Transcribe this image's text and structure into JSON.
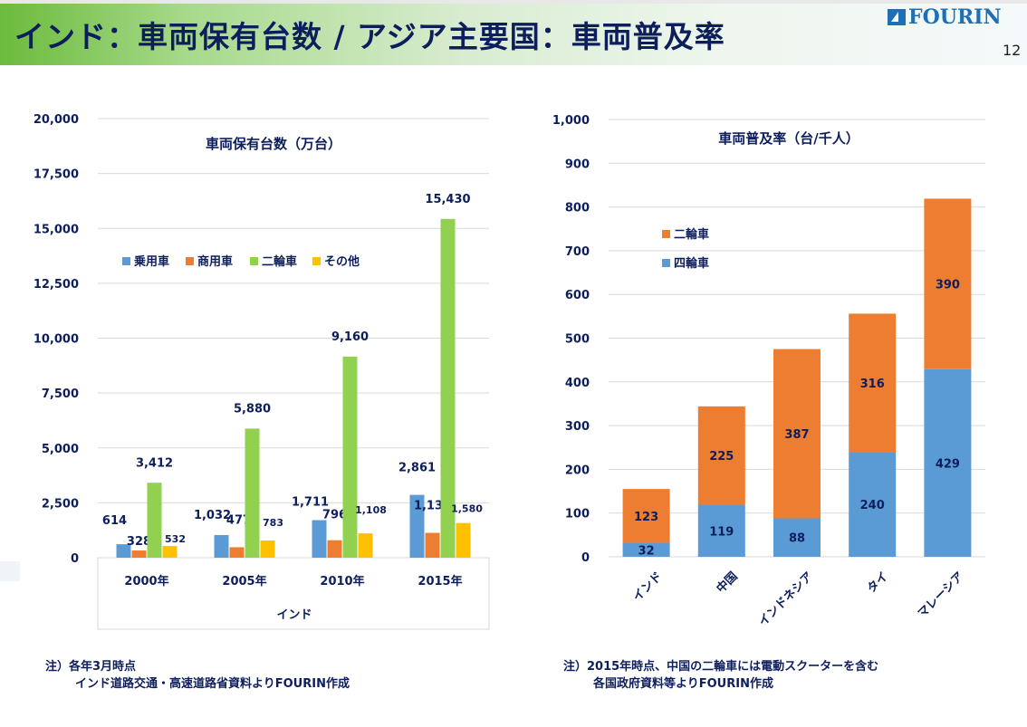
{
  "header": {
    "title": "インド：車両保有台数 / アジア主要国：車両普及率",
    "logo_text": "FOURIN",
    "page_number": "12"
  },
  "chart_data": [
    {
      "type": "bar",
      "title": "車両保有台数（万台）",
      "xlabel": "インド",
      "ylabel": "",
      "categories": [
        "2000年",
        "2005年",
        "2010年",
        "2015年"
      ],
      "series": [
        {
          "name": "乗用車",
          "color": "#5b9bd5",
          "values": [
            614,
            1032,
            1711,
            2861
          ],
          "labels": [
            "614",
            "1,032",
            "1,711",
            "2,861"
          ]
        },
        {
          "name": "商用車",
          "color": "#ed7d31",
          "values": [
            328,
            477,
            796,
            1132
          ],
          "labels": [
            "328",
            "477",
            "796",
            "1,132"
          ]
        },
        {
          "name": "二輪車",
          "color": "#92d050",
          "values": [
            3412,
            5880,
            9160,
            15430
          ],
          "labels": [
            "3,412",
            "5,880",
            "9,160",
            "15,430"
          ]
        },
        {
          "name": "その他",
          "color": "#ffc000",
          "values": [
            532,
            783,
            1108,
            1580
          ],
          "labels": [
            "532",
            "783",
            "1,108",
            "1,580"
          ]
        }
      ],
      "ylim": [
        0,
        20000
      ],
      "yticks": [
        0,
        2500,
        5000,
        7500,
        10000,
        12500,
        15000,
        17500,
        20000
      ],
      "ytick_labels": [
        "0",
        "2,500",
        "5,000",
        "7,500",
        "10,000",
        "12,500",
        "15,000",
        "17,500",
        "20,000"
      ],
      "grid": true,
      "legend_position": "top-left"
    },
    {
      "type": "bar",
      "stacked": true,
      "title": "車両普及率（台/千人）",
      "xlabel": "",
      "ylabel": "",
      "categories": [
        "インド",
        "中国",
        "インドネシア",
        "タイ",
        "マレーシア"
      ],
      "series": [
        {
          "name": "四輪車",
          "color": "#5b9bd5",
          "values": [
            32,
            119,
            88,
            240,
            429
          ]
        },
        {
          "name": "二輪車",
          "color": "#ed7d31",
          "values": [
            123,
            225,
            387,
            316,
            390
          ]
        }
      ],
      "ylim": [
        0,
        1000
      ],
      "yticks": [
        0,
        100,
        200,
        300,
        400,
        500,
        600,
        700,
        800,
        900,
        1000
      ],
      "ytick_labels": [
        "0",
        "100",
        "200",
        "300",
        "400",
        "500",
        "600",
        "700",
        "800",
        "900",
        "1,000"
      ],
      "grid": true,
      "legend_position": "top-left",
      "legend_order": [
        "二輪車",
        "四輪車"
      ]
    }
  ],
  "notes": {
    "left_line1": "注）各年3月時点",
    "left_line2": "インド道路交通・高速道路省資料よりFOURIN作成",
    "right_line1": "注）2015年時点、中国の二輪車には電動スクーターを含む",
    "right_line2": "各国政府資料等よりFOURIN作成"
  }
}
